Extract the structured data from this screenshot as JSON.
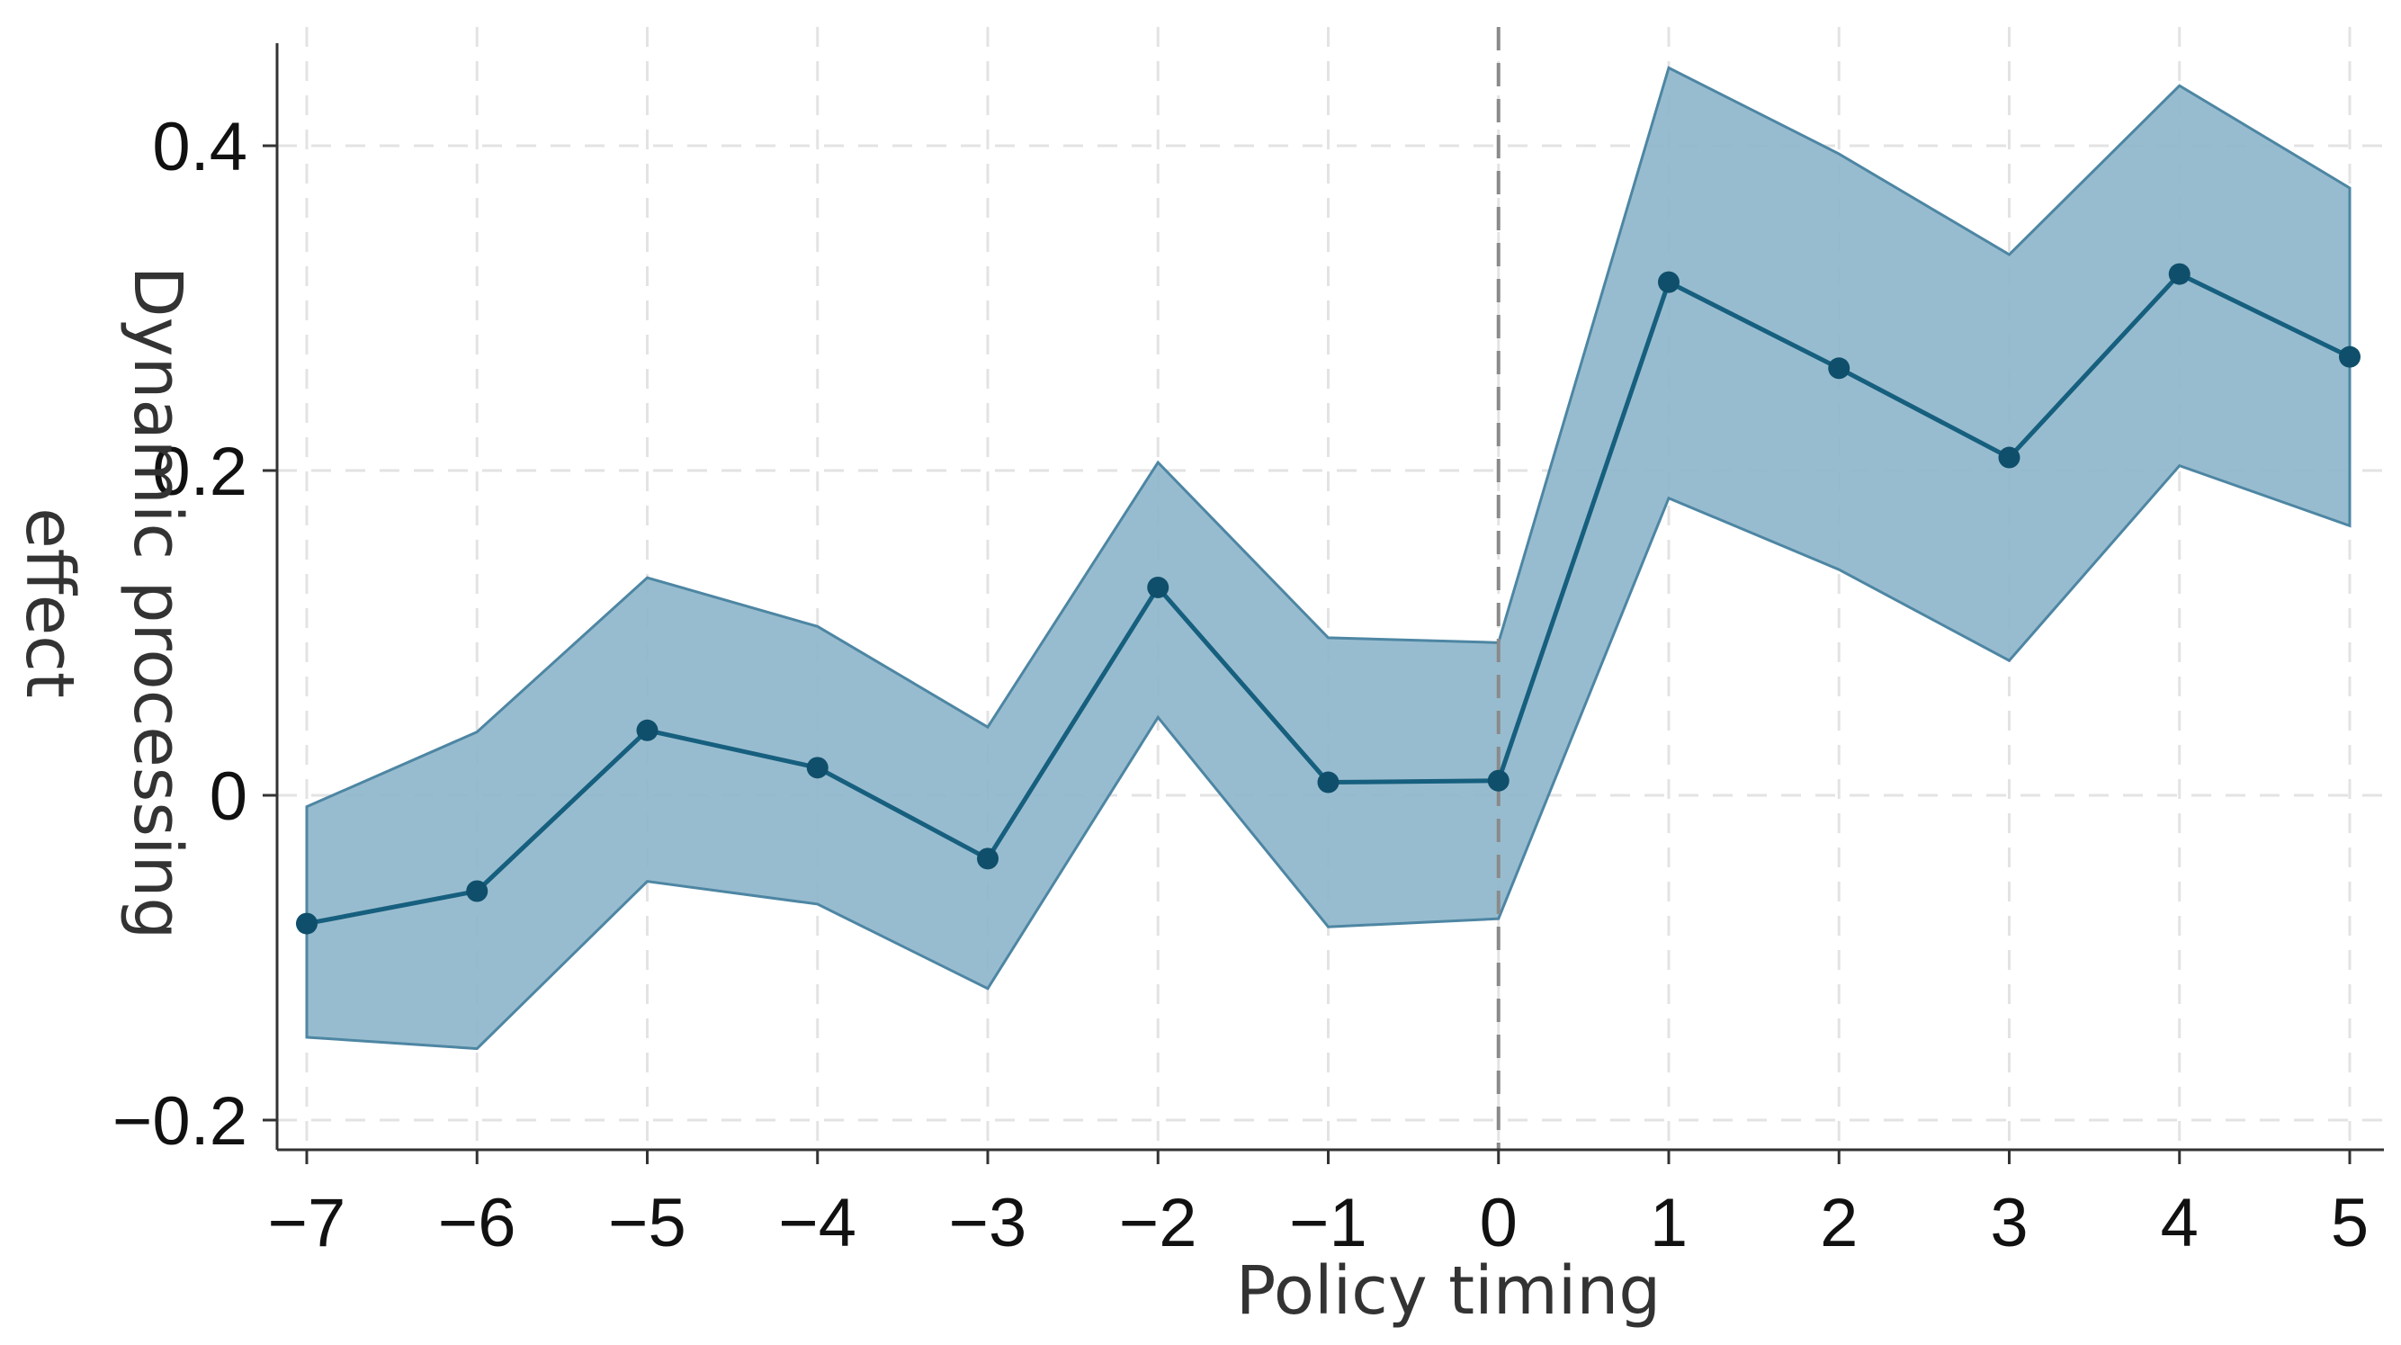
{
  "chart_data": {
    "type": "line",
    "title": "",
    "xlabel": "Policy timing",
    "ylabel": [
      "Dynamic processing",
      "effect"
    ],
    "x": [
      -7,
      -6,
      -5,
      -4,
      -3,
      -2,
      -1,
      0,
      1,
      2,
      3,
      4,
      5
    ],
    "x_tick_labels": [
      "−7",
      "−6",
      "−5",
      "−4",
      "−3",
      "−2",
      "−1",
      "0",
      "1",
      "2",
      "3",
      "4",
      "5"
    ],
    "y_ticks": [
      -0.2,
      0,
      0.2,
      0.4
    ],
    "y_tick_labels": [
      "−0.2",
      "0",
      "0.2",
      "0.4"
    ],
    "xlim": [
      -7.2,
      5.2
    ],
    "ylim": [
      -0.22,
      0.46
    ],
    "grid": true,
    "reference_line_x": 0,
    "series": [
      {
        "values": [
          -0.079,
          -0.059,
          0.04,
          0.017,
          -0.039,
          0.128,
          0.008,
          0.009,
          0.316,
          0.263,
          0.208,
          0.321,
          0.27
        ],
        "ci_upper": [
          -0.007,
          0.039,
          0.134,
          0.104,
          0.042,
          0.205,
          0.097,
          0.094,
          0.448,
          0.395,
          0.333,
          0.437,
          0.374
        ],
        "ci_lower": [
          -0.149,
          -0.156,
          -0.053,
          -0.067,
          -0.119,
          0.048,
          -0.081,
          -0.076,
          0.183,
          0.139,
          0.083,
          0.203,
          0.166
        ]
      }
    ],
    "colors": {
      "line": "#165f7e",
      "marker": "#0f4f6b",
      "band_fill": "#8fb6cb",
      "band_stroke": "#4d86a3",
      "reference_line": "#8a8a8a"
    }
  }
}
